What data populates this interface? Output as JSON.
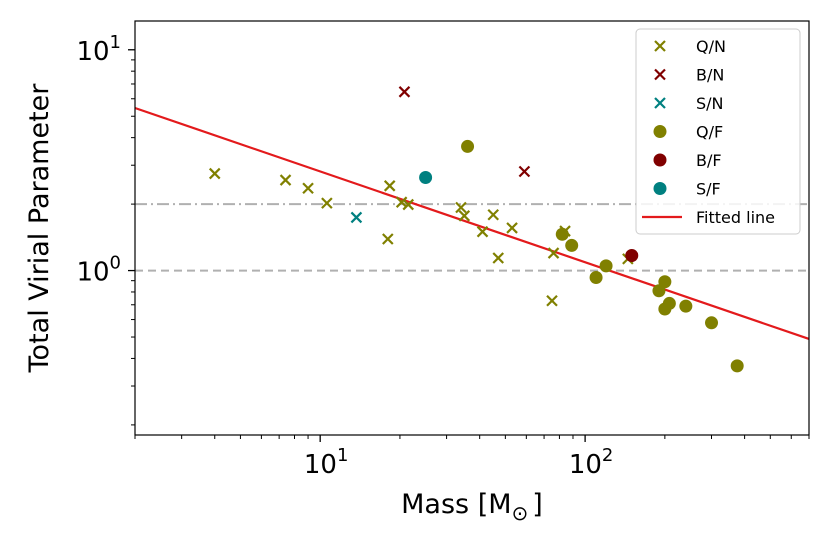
{
  "chart_data": {
    "type": "scatter",
    "xscale": "log",
    "yscale": "log",
    "xlim": [
      2.0,
      700
    ],
    "ylim": [
      0.18,
      13.5
    ],
    "xlabel_main": "Mass [M",
    "xlabel_sub": "⊙",
    "xlabel_close": "]",
    "ylabel": "Total Virial Parameter",
    "x_ticks": [
      {
        "value": 10,
        "base": "10",
        "exp": "1"
      },
      {
        "value": 100,
        "base": "10",
        "exp": "2"
      }
    ],
    "y_ticks": [
      {
        "value": 1,
        "base": "10",
        "exp": "0"
      },
      {
        "value": 10,
        "base": "10",
        "exp": "1"
      }
    ],
    "reference_lines": [
      {
        "y": 1.0,
        "style": "dashed",
        "color": "#b0b0b0"
      },
      {
        "y": 2.0,
        "style": "dashdot",
        "color": "#b0b0b0"
      }
    ],
    "series": [
      {
        "name": "Q/N",
        "marker": "x",
        "color": "#808000",
        "points": [
          [
            4.0,
            2.75
          ],
          [
            7.4,
            2.57
          ],
          [
            9.0,
            2.36
          ],
          [
            10.6,
            2.02
          ],
          [
            18.0,
            1.39
          ],
          [
            18.3,
            2.42
          ],
          [
            20.3,
            2.04
          ],
          [
            21.5,
            1.99
          ],
          [
            34.0,
            1.93
          ],
          [
            35.0,
            1.77
          ],
          [
            41.0,
            1.5
          ],
          [
            45.0,
            1.79
          ],
          [
            47.0,
            1.14
          ],
          [
            53.0,
            1.56
          ],
          [
            75.0,
            0.73
          ],
          [
            76.0,
            1.2
          ],
          [
            84.0,
            1.51
          ],
          [
            145.0,
            1.13
          ]
        ]
      },
      {
        "name": "B/N",
        "marker": "x",
        "color": "#800000",
        "points": [
          [
            20.8,
            6.45
          ],
          [
            59.0,
            2.81
          ]
        ]
      },
      {
        "name": "S/N",
        "marker": "x",
        "color": "#008080",
        "points": [
          [
            13.7,
            1.74
          ]
        ]
      },
      {
        "name": "Q/F",
        "marker": "o",
        "color": "#808000",
        "points": [
          [
            36.0,
            3.65
          ],
          [
            82.0,
            1.46
          ],
          [
            89.0,
            1.3
          ],
          [
            110.0,
            0.93
          ],
          [
            120.0,
            1.05
          ],
          [
            190.0,
            0.81
          ],
          [
            200.0,
            0.89
          ],
          [
            200.0,
            0.67
          ],
          [
            208.0,
            0.71
          ],
          [
            240.0,
            0.69
          ],
          [
            300.0,
            0.58
          ],
          [
            375.0,
            0.37
          ]
        ]
      },
      {
        "name": "B/F",
        "marker": "o",
        "color": "#800000",
        "points": [
          [
            150.0,
            1.17
          ]
        ]
      },
      {
        "name": "S/F",
        "marker": "o",
        "color": "#008080",
        "points": [
          [
            25.0,
            2.64
          ]
        ]
      },
      {
        "name": "Fitted line",
        "marker": "line",
        "color": "#e31a1c",
        "points": [
          [
            2.0,
            5.45
          ],
          [
            700,
            0.49
          ]
        ]
      }
    ],
    "legend_position": "top-right",
    "grid": false
  }
}
